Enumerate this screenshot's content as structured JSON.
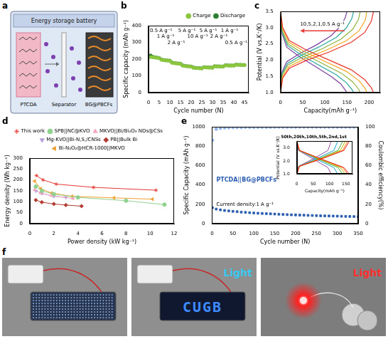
{
  "diagram": {
    "panel": "a",
    "title": "Energy storage battery",
    "left_electrode": "PTCDA",
    "separator": "Separator",
    "right_electrode": "BG@PBCFs"
  },
  "chart_data": [
    {
      "panel": "b",
      "type": "scatter",
      "x_label": "Cycle number (N)",
      "y_label": "Specific capacity (mAh g⁻¹)",
      "xlim": [
        0,
        47
      ],
      "xticks": [
        0,
        5,
        10,
        15,
        20,
        25,
        30,
        35,
        40,
        45
      ],
      "ylim": [
        0,
        400
      ],
      "yticks": [
        0,
        100,
        200,
        300,
        400
      ],
      "grid": false,
      "legend": "top-right",
      "x": [
        1,
        2,
        3,
        4,
        5,
        6,
        7,
        8,
        9,
        10,
        11,
        12,
        13,
        14,
        15,
        16,
        17,
        18,
        19,
        20,
        21,
        22,
        23,
        24,
        25,
        26,
        27,
        28,
        29,
        30,
        31,
        32,
        33,
        34,
        35,
        36,
        37,
        38,
        39,
        40,
        41,
        42,
        43,
        44,
        45
      ],
      "series": [
        {
          "name": "Charge",
          "color": "#8cc63f",
          "marker": "circle",
          "values": [
            212,
            211,
            209,
            208,
            206,
            196,
            194,
            192,
            191,
            190,
            178,
            176,
            174,
            173,
            172,
            161,
            159,
            157,
            156,
            155,
            148,
            147,
            146,
            145,
            144,
            151,
            150,
            149,
            149,
            148,
            157,
            156,
            156,
            155,
            155,
            162,
            162,
            161,
            161,
            161,
            166,
            165,
            165,
            164,
            164
          ]
        },
        {
          "name": "Discharge",
          "color": "#2e7d32",
          "marker": "circle",
          "values": [
            222,
            214,
            211,
            209,
            207,
            198,
            195,
            193,
            192,
            191,
            180,
            177,
            175,
            174,
            173,
            163,
            160,
            158,
            157,
            156,
            150,
            148,
            147,
            146,
            145,
            152,
            151,
            150,
            150,
            149,
            158,
            157,
            157,
            156,
            156,
            163,
            163,
            162,
            162,
            162,
            167,
            166,
            166,
            165,
            165
          ]
        }
      ],
      "annotations": [
        {
          "text": "0.5 A g⁻¹",
          "cycles": [
            1,
            5
          ]
        },
        {
          "text": "1 A g⁻¹",
          "cycles": [
            6,
            10
          ]
        },
        {
          "text": "2 A g⁻¹",
          "cycles": [
            11,
            15
          ]
        },
        {
          "text": "5 A g⁻¹",
          "cycles": [
            16,
            20
          ]
        },
        {
          "text": "10 A g⁻¹",
          "cycles": [
            21,
            25
          ]
        },
        {
          "text": "5 A g⁻¹",
          "cycles": [
            26,
            30
          ]
        },
        {
          "text": "2 A g⁻¹",
          "cycles": [
            31,
            35
          ]
        },
        {
          "text": "1 A g⁻¹",
          "cycles": [
            36,
            40
          ]
        },
        {
          "text": "0.5 A g⁻¹",
          "cycles": [
            41,
            45
          ]
        }
      ]
    },
    {
      "panel": "c",
      "type": "line",
      "x_label": "Capacity(mAh g⁻¹)",
      "y_label": "Potential (V vs.K⁺/K)",
      "xlim": [
        0,
        225
      ],
      "xticks": [
        0,
        50,
        100,
        150,
        200
      ],
      "ylim": [
        1,
        3.5
      ],
      "yticks": [
        {
          "value": 1,
          "label": "1.0"
        },
        1.5,
        {
          "value": 2,
          "label": "2.0"
        },
        2.5,
        {
          "value": 3,
          "label": "3.0"
        },
        3.5
      ],
      "grid": false,
      "annotation": "10,5,2,1,0.5 A g⁻¹",
      "series": [
        {
          "color": "#e8352b",
          "x": [
            0,
            5,
            20,
            60,
            110,
            160,
            190,
            205,
            210
          ],
          "values": [
            1.0,
            1.45,
            1.75,
            2.0,
            2.25,
            2.55,
            2.85,
            3.2,
            3.5
          ]
        },
        {
          "color": "#e8352b",
          "x": [
            0,
            5,
            20,
            60,
            110,
            160,
            190,
            205,
            210
          ],
          "values": [
            3.5,
            3.0,
            2.6,
            2.3,
            2.0,
            1.7,
            1.4,
            1.15,
            1.0
          ]
        },
        {
          "color": "#f5a623",
          "x": [
            0,
            5,
            19,
            56,
            102,
            149,
            177,
            191,
            195
          ],
          "values": [
            1.0,
            1.5,
            1.8,
            2.05,
            2.3,
            2.6,
            2.9,
            3.22,
            3.5
          ]
        },
        {
          "color": "#f5a623",
          "x": [
            0,
            5,
            19,
            56,
            102,
            149,
            177,
            191,
            195
          ],
          "values": [
            3.5,
            2.95,
            2.55,
            2.25,
            1.95,
            1.65,
            1.37,
            1.13,
            1.0
          ]
        },
        {
          "color": "#8db33a",
          "x": [
            0,
            4,
            17,
            51,
            94,
            137,
            163,
            176,
            180
          ],
          "values": [
            1.0,
            1.55,
            1.85,
            2.1,
            2.35,
            2.65,
            2.95,
            3.25,
            3.5
          ]
        },
        {
          "color": "#8db33a",
          "x": [
            0,
            4,
            17,
            51,
            94,
            137,
            163,
            176,
            180
          ],
          "values": [
            3.5,
            2.9,
            2.5,
            2.2,
            1.9,
            1.6,
            1.33,
            1.11,
            1.0
          ]
        },
        {
          "color": "#26a69a",
          "x": [
            0,
            4,
            16,
            47,
            86,
            126,
            149,
            161,
            165
          ],
          "values": [
            1.0,
            1.6,
            1.9,
            2.15,
            2.4,
            2.7,
            3.0,
            3.28,
            3.5
          ]
        },
        {
          "color": "#26a69a",
          "x": [
            0,
            4,
            16,
            47,
            86,
            126,
            149,
            161,
            165
          ],
          "values": [
            3.5,
            2.85,
            2.45,
            2.15,
            1.85,
            1.55,
            1.3,
            1.1,
            1.0
          ]
        },
        {
          "color": "#7b3fa0",
          "x": [
            0,
            4,
            14,
            43,
            79,
            114,
            136,
            146,
            150
          ],
          "values": [
            1.0,
            1.65,
            1.95,
            2.2,
            2.45,
            2.75,
            3.05,
            3.3,
            3.5
          ]
        },
        {
          "color": "#7b3fa0",
          "x": [
            0,
            4,
            14,
            43,
            79,
            114,
            136,
            146,
            150
          ],
          "values": [
            3.5,
            2.8,
            2.4,
            2.1,
            1.8,
            1.5,
            1.27,
            1.08,
            1.0
          ]
        }
      ]
    },
    {
      "panel": "d",
      "type": "line",
      "x_label": "Power density (kW kg⁻¹)",
      "y_label": "Energy density (Wh kg⁻¹)",
      "xlim": [
        0,
        12
      ],
      "xticks": [
        0,
        2,
        4,
        6,
        8,
        10,
        12
      ],
      "ylim": [
        0,
        300
      ],
      "yticks": [
        0,
        50,
        100,
        150,
        200,
        250,
        300
      ],
      "grid": false,
      "legend": "top",
      "series": [
        {
          "name": "This work",
          "color": "#e53935",
          "marker": "star",
          "line_style": "solid",
          "x": [
            0.55,
            1.1,
            2.2,
            5.3,
            10.5
          ],
          "values": [
            220,
            200,
            181,
            166,
            153
          ]
        },
        {
          "name": "SPB||NC@KVO",
          "color": "#8fd18f",
          "marker": "circle",
          "line_style": "solid",
          "x": [
            0.5,
            1.0,
            2.0,
            4.0,
            8.0,
            11.2
          ],
          "values": [
            170,
            150,
            135,
            120,
            105,
            87
          ]
        },
        {
          "name": "MKVO||Bi/Bi₂O₃ NDs@CSs",
          "color": "#f4a6c0",
          "marker": "triangle",
          "line_style": "solid",
          "x": [
            0.4,
            0.9,
            1.8,
            3.6
          ],
          "values": [
            155,
            140,
            128,
            115
          ]
        },
        {
          "name": "Mg-KVO||Bi-N,S,/CNSs",
          "color": "#b39ddb",
          "marker": "triangle-down",
          "line_style": "solid",
          "x": [
            0.5,
            1.0,
            2.0,
            3.0
          ],
          "values": [
            150,
            138,
            125,
            120
          ]
        },
        {
          "name": "PB||Bulk Bi",
          "color": "#b03a2e",
          "marker": "diamond",
          "line_style": "solid",
          "x": [
            0.5,
            1.0,
            2.0,
            3.0,
            4.3
          ],
          "values": [
            108,
            98,
            90,
            85,
            80
          ]
        },
        {
          "name": "Bi-N₂O₂@HCR-1000||MKVO",
          "color": "#f0a030",
          "marker": "triangle-left",
          "line_style": "solid",
          "x": [
            0.4,
            0.9,
            1.8,
            3.5,
            7.0,
            10.2
          ],
          "values": [
            195,
            160,
            140,
            125,
            118,
            112
          ]
        }
      ]
    },
    {
      "panel": "e",
      "type": "scatter",
      "x_label": "Cycle number (N)",
      "y_label": "Specific Capacity (mAh g⁻¹)",
      "y2_label": "Coulombic efficiency(%)",
      "xlim": [
        0,
        350
      ],
      "xticks": [
        0,
        50,
        100,
        150,
        200,
        250,
        300,
        350
      ],
      "ylim": [
        0,
        1000
      ],
      "yticks": [
        0,
        200,
        400,
        600,
        800,
        1000
      ],
      "y2lim": [
        0,
        100
      ],
      "y2ticks": [
        0,
        20,
        40,
        60,
        80,
        100
      ],
      "grid": false,
      "annotations": [
        "PTCDA||BG@PBCFs",
        "Current density:1 A g⁻¹"
      ],
      "x": [
        1,
        10,
        20,
        30,
        40,
        50,
        60,
        70,
        80,
        90,
        100,
        110,
        120,
        130,
        140,
        150,
        160,
        170,
        180,
        190,
        200,
        210,
        220,
        230,
        240,
        250,
        260,
        270,
        280,
        290,
        300,
        310,
        320,
        330,
        340,
        350
      ],
      "series": [
        {
          "color": "#2a5db0",
          "marker": "square",
          "values": [
            165,
            150,
            142,
            136,
            131,
            127,
            123,
            119,
            116,
            113,
            110,
            107,
            105,
            103,
            101,
            99,
            97,
            95,
            93,
            91,
            90,
            88,
            87,
            85,
            84,
            83,
            81,
            80,
            79,
            78,
            77,
            76,
            75,
            74,
            73,
            72
          ]
        },
        {
          "color": "#8fb3e8",
          "marker": "circle",
          "axis": "y2",
          "values": [
            86,
            97.6,
            98.5,
            98.9,
            99.1,
            99.2,
            99.3,
            99.3,
            99.4,
            99.4,
            99.4,
            99.5,
            99.5,
            99.5,
            99.5,
            99.6,
            99.6,
            99.6,
            99.6,
            99.6,
            99.6,
            99.7,
            99.7,
            99.7,
            99.7,
            99.7,
            99.7,
            99.7,
            99.7,
            99.7,
            99.7,
            99.7,
            99.7,
            99.7,
            99.7,
            99.7
          ]
        }
      ]
    },
    {
      "type": "line",
      "x_label": "Capacity(mAh g⁻¹)",
      "y_label": "Potential (V vs.K⁺/K)",
      "xlim": [
        0,
        170
      ],
      "xticks": [
        0,
        50,
        100,
        150
      ],
      "ylim": [
        1,
        3.5
      ],
      "yticks": [
        {
          "value": 1,
          "label": "1.0"
        },
        {
          "value": 2,
          "label": "2.0"
        },
        {
          "value": 3,
          "label": "3.0"
        }
      ],
      "grid": false,
      "annotation": "50th,20th,10th,5th,2nd,1st",
      "series": [
        {
          "color": "#e41a1c",
          "x": [
            0,
            8,
            80,
            144,
            160
          ],
          "values": [
            1.0,
            1.6,
            2.2,
            2.8,
            3.5
          ]
        },
        {
          "color": "#e41a1c",
          "x": [
            0,
            8,
            80,
            144,
            160
          ],
          "values": [
            3.5,
            2.8,
            2.1,
            1.5,
            1.0
          ]
        },
        {
          "color": "#ff7f00",
          "x": [
            0,
            8,
            78,
            140,
            155
          ],
          "values": [
            1.0,
            1.6,
            2.2,
            2.8,
            3.5
          ]
        },
        {
          "color": "#ff7f00",
          "x": [
            0,
            8,
            78,
            140,
            155
          ],
          "values": [
            3.5,
            2.8,
            2.1,
            1.5,
            1.0
          ]
        },
        {
          "color": "#b5b800",
          "x": [
            0,
            7,
            74,
            133,
            148
          ],
          "values": [
            1.0,
            1.6,
            2.2,
            2.8,
            3.5
          ]
        },
        {
          "color": "#b5b800",
          "x": [
            0,
            7,
            74,
            133,
            148
          ],
          "values": [
            3.5,
            2.8,
            2.1,
            1.5,
            1.0
          ]
        },
        {
          "color": "#4daf4a",
          "x": [
            0,
            7,
            70,
            126,
            140
          ],
          "values": [
            1.0,
            1.6,
            2.2,
            2.8,
            3.5
          ]
        },
        {
          "color": "#4daf4a",
          "x": [
            0,
            7,
            70,
            126,
            140
          ],
          "values": [
            3.5,
            2.8,
            2.1,
            1.5,
            1.0
          ]
        },
        {
          "color": "#17a2c8",
          "x": [
            0,
            6,
            63,
            113,
            125
          ],
          "values": [
            1.0,
            1.6,
            2.2,
            2.8,
            3.5
          ]
        },
        {
          "color": "#17a2c8",
          "x": [
            0,
            6,
            63,
            113,
            125
          ],
          "values": [
            3.5,
            2.8,
            2.1,
            1.5,
            1.0
          ]
        },
        {
          "color": "#984ea3",
          "x": [
            0,
            5,
            53,
            95,
            105
          ],
          "values": [
            1.0,
            1.6,
            2.2,
            2.8,
            3.5
          ]
        },
        {
          "color": "#984ea3",
          "x": [
            0,
            5,
            53,
            95,
            105
          ],
          "values": [
            3.5,
            2.8,
            2.1,
            1.5,
            1.0
          ]
        }
      ]
    }
  ],
  "photos": {
    "panel": "f",
    "display_text": "CUGB",
    "labels": [
      {
        "text": "Light",
        "color": "#38c8f0"
      },
      {
        "text": "Light",
        "color": "#ff3030"
      }
    ]
  }
}
